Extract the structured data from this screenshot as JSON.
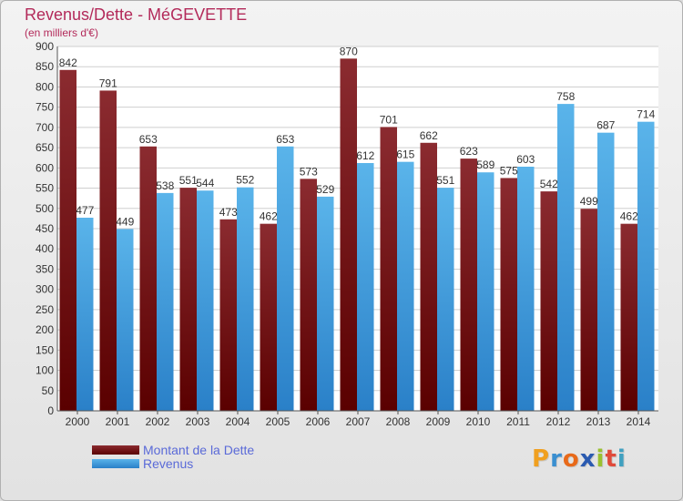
{
  "title": "Revenus/Dette - MéGEVETTE",
  "subtitle": "(en milliers d'€)",
  "colors": {
    "dette_top": "#8b2b30",
    "dette_bottom": "#5a0000",
    "revenus_top": "#5ab4ea",
    "revenus_bottom": "#2a80c8",
    "title": "#b32a5a",
    "legend_text": "#5a6ad8"
  },
  "legend": {
    "items": [
      {
        "label": "Montant de la Dette",
        "series": "dette"
      },
      {
        "label": "Revenus",
        "series": "revenus"
      }
    ]
  },
  "logo": {
    "letters": [
      "P",
      "r",
      "o",
      "x",
      "i",
      "t",
      "i"
    ],
    "colors": [
      "#f0a020",
      "#3a8fd0",
      "#e86a1a",
      "#2a5ab0",
      "#9ac030",
      "#e04a3a",
      "#40a0c0"
    ]
  },
  "chart_data": {
    "type": "bar",
    "title": "Revenus/Dette - MéGEVETTE",
    "subtitle": "(en milliers d'€)",
    "categories": [
      "2000",
      "2001",
      "2002",
      "2003",
      "2004",
      "2005",
      "2006",
      "2007",
      "2008",
      "2009",
      "2010",
      "2011",
      "2012",
      "2013",
      "2014"
    ],
    "series": [
      {
        "name": "Montant de la Dette",
        "key": "dette",
        "values": [
          842,
          791,
          653,
          551,
          473,
          462,
          573,
          870,
          701,
          662,
          623,
          575,
          542,
          499,
          462
        ]
      },
      {
        "name": "Revenus",
        "key": "revenus",
        "values": [
          477,
          449,
          538,
          544,
          552,
          653,
          529,
          612,
          615,
          551,
          589,
          603,
          758,
          687,
          714
        ]
      }
    ],
    "ylim": [
      0,
      900
    ],
    "yticks": [
      0,
      50,
      100,
      150,
      200,
      250,
      300,
      350,
      400,
      450,
      500,
      550,
      600,
      650,
      700,
      750,
      800,
      850,
      900
    ],
    "grid": true,
    "legend_position": "bottom-left"
  }
}
